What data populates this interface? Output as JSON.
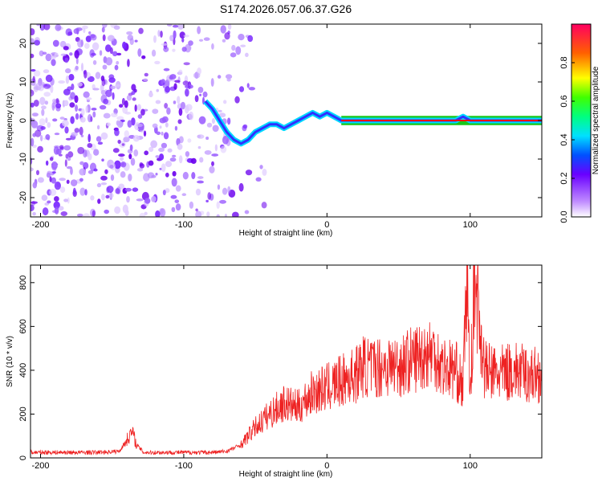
{
  "title": "S174.2026.057.06.37.G26",
  "colors": {
    "snr_line": "#ee2222",
    "center_line": "#ff1010",
    "center_band": "#00c000"
  },
  "chart_data": [
    {
      "type": "heatmap",
      "title": "S174.2026.057.06.37.G26",
      "xlabel": "Height of straight line (km)",
      "ylabel": "Frequency (Hz)",
      "xlim": [
        -207,
        150
      ],
      "ylim": [
        -25,
        25
      ],
      "xticks": [
        -200,
        -100,
        0,
        100
      ],
      "yticks": [
        -20,
        -10,
        0,
        10,
        20
      ],
      "colorbar": {
        "label": "Normalized spectral amplitude",
        "range": [
          0,
          1
        ],
        "ticks": [
          0.0,
          0.2,
          0.4,
          0.6,
          0.8
        ]
      },
      "ridge_path": {
        "x": [
          -85,
          -80,
          -75,
          -70,
          -65,
          -60,
          -55,
          -50,
          -45,
          -40,
          -35,
          -30,
          -25,
          -20,
          -15,
          -10,
          -5,
          0,
          5,
          10,
          20,
          40,
          70,
          90,
          95,
          100,
          150
        ],
        "freq": [
          5,
          3,
          0,
          -3,
          -5,
          -6,
          -5,
          -3,
          -2,
          -1,
          -1,
          -2,
          -1,
          0,
          1,
          2,
          1,
          2,
          1,
          0,
          0,
          0,
          0,
          0,
          1,
          0,
          0
        ]
      }
    },
    {
      "type": "line",
      "xlabel": "Height of straight line (km)",
      "ylabel": "SNR (10 * v/v)",
      "xlim": [
        -207,
        150
      ],
      "ylim": [
        0,
        880
      ],
      "xticks": [
        -200,
        -100,
        0,
        100
      ],
      "yticks": [
        0,
        200,
        400,
        600,
        800
      ],
      "series": [
        {
          "name": "SNR",
          "x": [
            -207,
            -180,
            -160,
            -145,
            -140,
            -136,
            -133,
            -128,
            -120,
            -100,
            -80,
            -70,
            -60,
            -50,
            -40,
            -30,
            -20,
            -10,
            0,
            10,
            20,
            25,
            30,
            40,
            50,
            60,
            70,
            75,
            80,
            90,
            95,
            98,
            100,
            103,
            110,
            120,
            130,
            140,
            150
          ],
          "y": [
            25,
            25,
            25,
            30,
            80,
            120,
            60,
            25,
            25,
            25,
            25,
            30,
            60,
            140,
            200,
            250,
            230,
            300,
            320,
            350,
            380,
            420,
            410,
            420,
            420,
            450,
            480,
            480,
            420,
            400,
            320,
            870,
            250,
            850,
            400,
            380,
            400,
            380,
            380
          ]
        }
      ]
    }
  ]
}
